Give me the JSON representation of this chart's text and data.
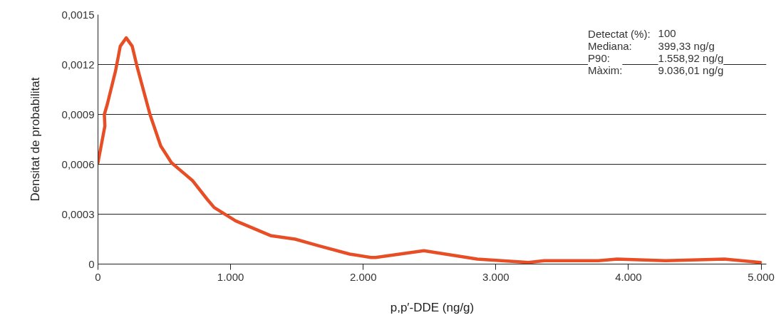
{
  "chart_data": {
    "type": "line",
    "xlabel": "p,p′-DDE (ng/g)",
    "ylabel": "Densitat de probabilitat",
    "x": [
      0,
      52,
      48,
      70,
      132,
      168,
      213,
      258,
      294,
      392,
      473,
      554,
      715,
      823,
      876,
      1038,
      1306,
      1486,
      1665,
      1898,
      2059,
      2093,
      2457,
      2860,
      3247,
      3365,
      3774,
      3914,
      4280,
      4724,
      4995
    ],
    "series": [
      {
        "color": "#e84e25",
        "values": [
          0.00061,
          0.00083,
          0.0009,
          0.00096,
          0.00116,
          0.00131,
          0.00136,
          0.00131,
          0.00119,
          0.0009,
          0.00071,
          0.00061,
          0.0005,
          0.00039,
          0.00034,
          0.00026,
          0.00017,
          0.00015,
          0.00011,
          6e-05,
          4e-05,
          4e-05,
          8e-05,
          3e-05,
          1e-05,
          2e-05,
          2e-05,
          3e-05,
          2e-05,
          3e-05,
          1e-05
        ]
      }
    ],
    "xlim": [
      0,
      5040
    ],
    "ylim": [
      0,
      0.0015
    ],
    "xticks": [
      0,
      {
        "value": 1000,
        "label": "1.000"
      },
      {
        "value": 2000,
        "label": "2.000"
      },
      {
        "value": 3000,
        "label": "3.000"
      },
      {
        "value": 4000,
        "label": "4.000"
      },
      {
        "value": 5000,
        "label": "5.000"
      }
    ],
    "yticks": [
      0,
      {
        "value": 0.0003,
        "label": "0,0003"
      },
      {
        "value": 0.0006,
        "label": "0,0006"
      },
      {
        "value": 0.0009,
        "label": "0,0009"
      },
      {
        "value": 0.0012,
        "label": "0,0012"
      },
      {
        "value": 0.0015,
        "label": "0,0015"
      }
    ],
    "grid": "y",
    "marker": "none",
    "line_style": "solid",
    "annotations": [
      "Detectat (%): 100",
      "Mediana: 399,33 ng/g",
      "P90: 1.558,92 ng/g",
      "Màxim: 9.036,01 ng/g"
    ]
  }
}
